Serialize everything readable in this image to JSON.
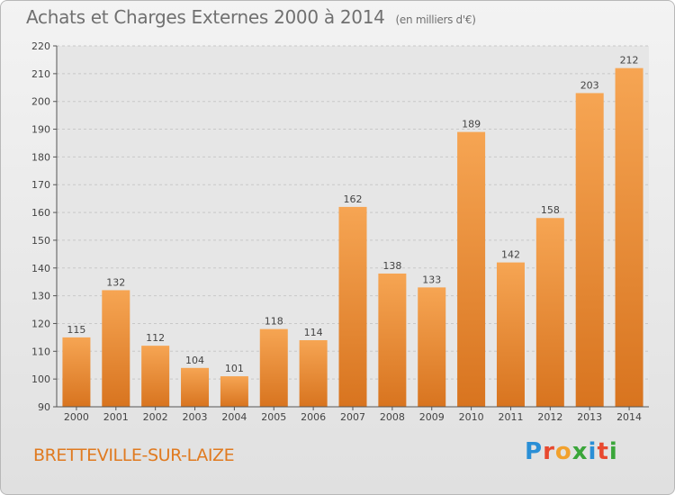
{
  "header": {
    "title": "Achats et Charges Externes 2000 à 2014",
    "unit": "(en milliers d'€)"
  },
  "footer": {
    "commune": "BRETTEVILLE-SUR-LAIZE",
    "logo_letters": [
      "P",
      "r",
      "o",
      "x",
      "i",
      "t",
      "i"
    ],
    "logo_colors": [
      "#2a8fd6",
      "#e8492f",
      "#f2a12d",
      "#3aa63a",
      "#2a8fd6",
      "#e8492f",
      "#3aa63a"
    ]
  },
  "colors": {
    "bar_light": "#f6a553",
    "bar_dark": "#d8741f",
    "grid": "#c8c8c8",
    "axis_text": "#444444",
    "plot_bg": "#e6e6e6"
  },
  "chart_data": {
    "type": "bar",
    "title": "Achats et Charges Externes 2000 à 2014",
    "subtitle": "(en milliers d'€)",
    "categories": [
      "2000",
      "2001",
      "2002",
      "2003",
      "2004",
      "2005",
      "2006",
      "2007",
      "2008",
      "2009",
      "2010",
      "2011",
      "2012",
      "2013",
      "2014"
    ],
    "values": [
      115,
      132,
      112,
      104,
      101,
      118,
      114,
      162,
      138,
      133,
      189,
      142,
      158,
      203,
      212
    ],
    "ylim": [
      90,
      220
    ],
    "yticks": [
      90,
      100,
      110,
      120,
      130,
      140,
      150,
      160,
      170,
      180,
      190,
      200,
      210,
      220
    ],
    "grid": "horizontal dashed",
    "legend": "none"
  }
}
